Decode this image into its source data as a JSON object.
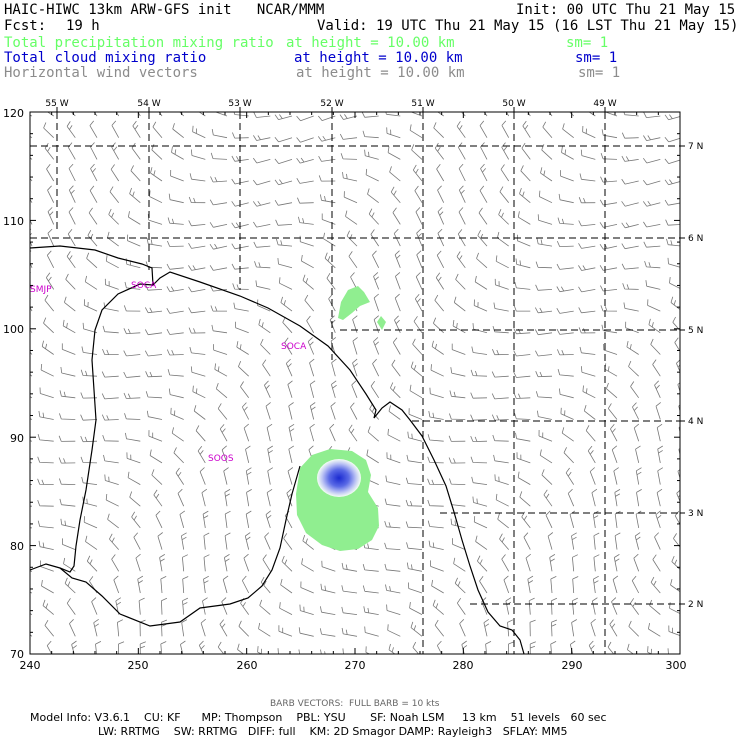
{
  "header": {
    "line1_left": "HAIC-HIWC 13km ARW-GFS init   NCAR/MMM",
    "line1_right": "Init: 00 UTC Thu 21 May 15",
    "fcst_label": "Fcst:",
    "fcst_value": "19 h",
    "valid": "Valid: 19 UTC Thu 21 May 15 (16 LST Thu 21 May 15)",
    "fields": [
      {
        "name": "Total precipitation mixing ratio",
        "height": "at height = 10.00 km",
        "sm": "sm= 1",
        "color": "#66ff66"
      },
      {
        "name": "Total cloud mixing ratio",
        "height": "at height = 10.00 km",
        "sm": "sm= 1",
        "color": "#0000cc"
      },
      {
        "name": "Horizontal wind vectors",
        "height": "at height = 10.00 km",
        "sm": "sm= 1",
        "color": "#8c8c8c"
      }
    ]
  },
  "map": {
    "x_ticks": [
      "240",
      "250",
      "260",
      "270",
      "280",
      "290",
      "300"
    ],
    "y_ticks": [
      "70",
      "80",
      "90",
      "100",
      "110",
      "120"
    ],
    "lon_labels": [
      "55 W",
      "54 W",
      "53 W",
      "52 W",
      "51 W",
      "50 W",
      "49 W"
    ],
    "lat_labels": [
      "2 N",
      "3 N",
      "4 N",
      "5 N",
      "6 N",
      "7 N"
    ],
    "stations": [
      "SMJP",
      "SOCA",
      "SOCA",
      "SOOS"
    ],
    "station_color": "#cc00cc",
    "precip_color": "#90ee90",
    "cloud_color": "#2a3ad8",
    "barb_color": "#777777"
  },
  "footer": {
    "barb_note": "BARB VECTORS:  FULL BARB = 10 kts",
    "line1": "Model Info: V3.6.1    CU: KF      MP: Thompson    PBL: YSU       SF: Noah LSM     13 km    51 levels   60 sec",
    "line2": "LW: RRTMG    SW: RRTMG   DIFF: full    KM: 2D Smagor DAMP: Rayleigh3   SFLAY: MM5"
  }
}
